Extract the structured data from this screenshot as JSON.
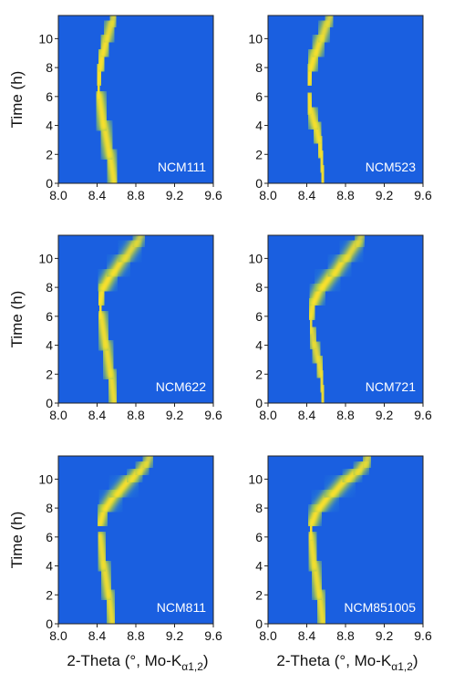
{
  "chart_data": [
    {
      "type": "heatmap",
      "label": "NCM111",
      "xlim": [
        8.0,
        9.6
      ],
      "ylim": [
        0,
        11.6
      ],
      "xticks": [
        8.0,
        8.4,
        8.8,
        9.2,
        9.6
      ],
      "yticks": [
        0,
        2,
        4,
        6,
        8,
        10
      ],
      "ylabel": "Time (h)",
      "xlabel": "",
      "peak_trace": {
        "time": [
          0,
          2,
          4,
          6,
          7,
          8,
          9,
          10,
          11,
          11.6
        ],
        "two_theta": [
          8.58,
          8.53,
          8.47,
          8.42,
          8.41,
          8.43,
          8.46,
          8.5,
          8.55,
          8.58
        ],
        "strength": [
          0.9,
          0.9,
          0.9,
          0.95,
          1.0,
          1.0,
          0.95,
          0.9,
          0.75,
          0.6
        ]
      }
    },
    {
      "type": "heatmap",
      "label": "NCM523",
      "xlim": [
        8.0,
        9.6
      ],
      "ylim": [
        0,
        11.6
      ],
      "xticks": [
        8.0,
        8.4,
        8.8,
        9.2,
        9.6
      ],
      "yticks": [
        0,
        2,
        4,
        6,
        8,
        10
      ],
      "ylabel": "",
      "xlabel": "",
      "peak_trace": {
        "time": [
          0,
          1,
          2,
          3,
          4,
          5,
          6,
          7,
          8,
          9,
          10,
          11,
          11.6
        ],
        "two_theta": [
          8.57,
          8.56,
          8.55,
          8.53,
          8.49,
          8.44,
          8.42,
          8.42,
          8.44,
          8.49,
          8.55,
          8.61,
          8.65
        ],
        "strength": [
          0.9,
          0.9,
          0.9,
          0.9,
          0.9,
          0.9,
          0.95,
          1.0,
          1.0,
          0.95,
          0.85,
          0.75,
          0.6
        ]
      }
    },
    {
      "type": "heatmap",
      "label": "NCM622",
      "xlim": [
        8.0,
        9.6
      ],
      "ylim": [
        0,
        11.6
      ],
      "xticks": [
        8.0,
        8.4,
        8.8,
        9.2,
        9.6
      ],
      "yticks": [
        0,
        2,
        4,
        6,
        8,
        10
      ],
      "ylabel": "Time (h)",
      "xlabel": "",
      "peak_trace": {
        "time": [
          0,
          2,
          4,
          6,
          7,
          8,
          9,
          10,
          11,
          11.6
        ],
        "two_theta": [
          8.58,
          8.54,
          8.49,
          8.44,
          8.43,
          8.46,
          8.56,
          8.68,
          8.8,
          8.86
        ],
        "strength": [
          0.85,
          0.85,
          0.85,
          0.9,
          0.95,
          1.0,
          0.95,
          0.85,
          0.7,
          0.55
        ]
      }
    },
    {
      "type": "heatmap",
      "label": "NCM721",
      "xlim": [
        8.0,
        9.6
      ],
      "ylim": [
        0,
        11.6
      ],
      "xticks": [
        8.0,
        8.4,
        8.8,
        9.2,
        9.6
      ],
      "yticks": [
        0,
        2,
        4,
        6,
        8,
        10
      ],
      "ylabel": "",
      "xlabel": "",
      "peak_trace": {
        "time": [
          0,
          1,
          2,
          3,
          4,
          5,
          6,
          7,
          8,
          9,
          10,
          11,
          11.6
        ],
        "two_theta": [
          8.57,
          8.56,
          8.55,
          8.52,
          8.48,
          8.45,
          8.44,
          8.47,
          8.55,
          8.68,
          8.8,
          8.92,
          8.97
        ],
        "strength": [
          0.85,
          0.85,
          0.85,
          0.8,
          0.75,
          0.75,
          0.85,
          0.95,
          1.0,
          0.95,
          0.85,
          0.7,
          0.55
        ]
      }
    },
    {
      "type": "heatmap",
      "label": "NCM811",
      "xlim": [
        8.0,
        9.6
      ],
      "ylim": [
        0,
        11.6
      ],
      "xticks": [
        8.0,
        8.4,
        8.8,
        9.2,
        9.6
      ],
      "yticks": [
        0,
        2,
        4,
        6,
        8,
        10
      ],
      "ylabel": "Time (h)",
      "xlabel": "2-Theta (°, Mo-K",
      "xlabel_sub": "α1,2",
      "xlabel_end": ")",
      "peak_trace": {
        "time": [
          0,
          2,
          4,
          6,
          7,
          8,
          9,
          10,
          10.5,
          11,
          11.6
        ],
        "two_theta": [
          8.56,
          8.52,
          8.47,
          8.43,
          8.43,
          8.48,
          8.6,
          8.75,
          8.83,
          8.9,
          8.95
        ],
        "strength": [
          0.85,
          0.85,
          0.85,
          0.85,
          0.9,
          0.95,
          0.95,
          0.9,
          0.85,
          0.75,
          0.6
        ]
      }
    },
    {
      "type": "heatmap",
      "label": "NCM851005",
      "xlim": [
        8.0,
        9.6
      ],
      "ylim": [
        0,
        11.6
      ],
      "xticks": [
        8.0,
        8.4,
        8.8,
        9.2,
        9.6
      ],
      "yticks": [
        0,
        2,
        4,
        6,
        8,
        10
      ],
      "ylabel": "",
      "xlabel": "2-Theta (°, Mo-K",
      "xlabel_sub": "α1,2",
      "xlabel_end": ")",
      "peak_trace": {
        "time": [
          0,
          2,
          4,
          6,
          7,
          8,
          9,
          10,
          10.5,
          11,
          11.6
        ],
        "two_theta": [
          8.57,
          8.53,
          8.48,
          8.44,
          8.45,
          8.52,
          8.66,
          8.82,
          8.92,
          9.0,
          9.04
        ],
        "strength": [
          0.85,
          0.85,
          0.85,
          0.9,
          0.95,
          0.95,
          0.95,
          0.9,
          0.85,
          0.75,
          0.6
        ]
      }
    }
  ],
  "colors": {
    "background": "#1a5fe0",
    "peak_core": "#ffe12a",
    "peak_mid": "#c4d92e",
    "peak_edge": "#2f8fd0",
    "panel_label": "#ffffff",
    "axis_text": "#111111"
  }
}
